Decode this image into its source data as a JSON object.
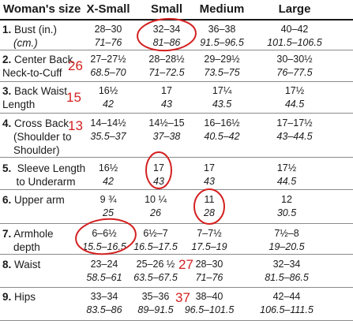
{
  "table": {
    "headers": [
      "Woman's size",
      "X-Small",
      "Small",
      "Medium",
      "Large"
    ],
    "rows": [
      {
        "num": "1.",
        "label": [
          "Bust (in.)",
          "(cm.)"
        ],
        "label_italic2": true,
        "cells": [
          [
            "28–30",
            "71–76"
          ],
          [
            "32–34",
            "81–86"
          ],
          [
            "36–38",
            "91.5–96.5"
          ],
          [
            "40–42",
            "101.5–106.5"
          ]
        ],
        "note": ""
      },
      {
        "num": "2.",
        "label": [
          "Center Back",
          "Neck-to-Cuff"
        ],
        "cells": [
          [
            "27–27½",
            "68.5–70"
          ],
          [
            "28–28½",
            "71–72.5"
          ],
          [
            "29–29½",
            "73.5–75"
          ],
          [
            "30–30½",
            "76–77.5"
          ]
        ],
        "note": "26"
      },
      {
        "num": "3.",
        "label": [
          "Back Waist",
          "Length"
        ],
        "cells": [
          [
            "16½",
            "42"
          ],
          [
            "17",
            "43"
          ],
          [
            "17¼",
            "43.5"
          ],
          [
            "17½",
            "44.5"
          ]
        ],
        "note": "15"
      },
      {
        "num": "4.",
        "label": [
          "Cross Back",
          "(Shoulder to",
          "Shoulder)"
        ],
        "cells": [
          [
            "14–14½",
            "35.5–37"
          ],
          [
            "14½–15",
            "37–38"
          ],
          [
            "16–16½",
            "40.5–42"
          ],
          [
            "17–17½",
            "43–44.5"
          ]
        ],
        "note": "13"
      },
      {
        "num": "5.",
        "label": [
          " Sleeve Length",
          "  to Underarm"
        ],
        "cells": [
          [
            "16½",
            "42"
          ],
          [
            "17",
            "43"
          ],
          [
            "17",
            "43"
          ],
          [
            "17½",
            "44.5"
          ]
        ],
        "note": ""
      },
      {
        "num": "6.",
        "label": [
          "Upper arm"
        ],
        "cells": [
          [
            "9 ¾",
            "25"
          ],
          [
            "10 ¼",
            "26"
          ],
          [
            "11",
            "28"
          ],
          [
            "12",
            "30.5"
          ]
        ],
        "note": ""
      },
      {
        "num": "7.",
        "label": [
          "Armhole",
          "depth"
        ],
        "cells": [
          [
            "6–6½",
            "15.5–16.5"
          ],
          [
            "6½–7",
            "16.5–17.5"
          ],
          [
            "7–7½",
            "17.5–19"
          ],
          [
            "7½–8",
            "19–20.5"
          ]
        ],
        "note": ""
      },
      {
        "num": "8.",
        "label": [
          "Waist"
        ],
        "cells": [
          [
            "23–24",
            "58.5–61"
          ],
          [
            "25–26 ½",
            "63.5–67.5"
          ],
          [
            "28–30",
            "71–76"
          ],
          [
            "32–34",
            "81.5–86.5"
          ]
        ],
        "note": "27"
      },
      {
        "num": "9.",
        "label": [
          "Hips"
        ],
        "cells": [
          [
            "33–34",
            "83.5–86"
          ],
          [
            "35–36",
            "89–91.5"
          ],
          [
            "38–40",
            "96.5–101.5"
          ],
          [
            "42–44",
            "106.5–111.5"
          ]
        ],
        "note": "37"
      }
    ]
  },
  "annotation_color": "#d42020"
}
